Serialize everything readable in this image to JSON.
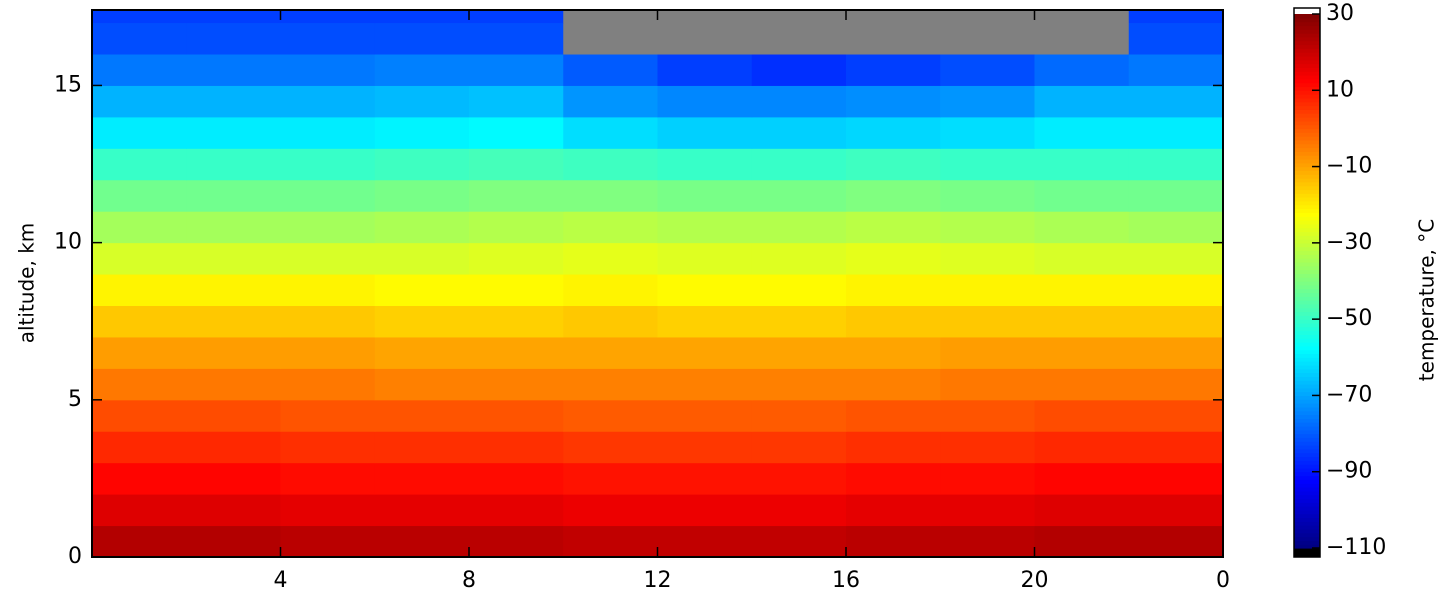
{
  "chart_data": {
    "type": "heatmap",
    "x_bins": [
      0,
      2,
      4,
      6,
      8,
      10,
      12,
      14,
      16,
      18,
      20,
      22,
      24
    ],
    "y_bins": [
      0,
      1,
      2,
      3,
      4,
      5,
      6,
      7,
      8,
      9,
      10,
      11,
      12,
      13,
      14,
      15,
      16,
      17,
      18
    ],
    "z": [
      [
        23,
        23,
        22,
        22,
        22,
        21,
        21,
        21,
        22,
        22,
        23,
        23
      ],
      [
        17,
        17,
        16,
        16,
        16,
        15,
        15,
        15,
        16,
        16,
        17,
        17
      ],
      [
        12,
        12,
        11,
        11,
        11,
        10,
        10,
        10,
        11,
        11,
        12,
        12
      ],
      [
        7,
        7,
        6,
        6,
        6,
        5,
        5,
        5,
        6,
        6,
        7,
        7
      ],
      [
        2,
        2,
        1,
        1,
        1,
        0,
        0,
        0,
        1,
        1,
        2,
        2
      ],
      [
        -4,
        -4,
        -4,
        -5,
        -5,
        -5,
        -5,
        -5,
        -5,
        -4,
        -4,
        -4
      ],
      [
        -9,
        -9,
        -9,
        -10,
        -10,
        -10,
        -10,
        -10,
        -10,
        -9,
        -9,
        -9
      ],
      [
        -15,
        -15,
        -15,
        -16,
        -16,
        -15,
        -16,
        -16,
        -15,
        -15,
        -15,
        -15
      ],
      [
        -21,
        -21,
        -21,
        -22,
        -22,
        -21,
        -22,
        -22,
        -21,
        -21,
        -21,
        -21
      ],
      [
        -28,
        -28,
        -28,
        -28,
        -27,
        -26,
        -27,
        -27,
        -26,
        -27,
        -28,
        -28
      ],
      [
        -35,
        -35,
        -35,
        -34,
        -33,
        -32,
        -33,
        -33,
        -32,
        -33,
        -34,
        -35
      ],
      [
        -42,
        -42,
        -42,
        -41,
        -40,
        -40,
        -41,
        -41,
        -40,
        -41,
        -42,
        -42
      ],
      [
        -50,
        -50,
        -50,
        -49,
        -48,
        -49,
        -50,
        -50,
        -49,
        -50,
        -50,
        -50
      ],
      [
        -60,
        -60,
        -60,
        -59,
        -58,
        -62,
        -64,
        -64,
        -63,
        -62,
        -60,
        -60
      ],
      [
        -68,
        -68,
        -68,
        -67,
        -66,
        -72,
        -74,
        -74,
        -73,
        -72,
        -68,
        -68
      ],
      [
        -76,
        -76,
        -76,
        -75,
        -75,
        -80,
        -84,
        -86,
        -84,
        -82,
        -78,
        -76
      ],
      [
        -82,
        -82,
        -82,
        -82,
        -82,
        null,
        null,
        null,
        null,
        null,
        null,
        -82
      ],
      [
        -84,
        -84,
        -84,
        -84,
        -84,
        null,
        null,
        null,
        null,
        null,
        null,
        -84
      ]
    ],
    "null_color": "#808080",
    "colormap": "jet",
    "xlim": [
      0,
      24
    ],
    "xticks": [
      4,
      8,
      12,
      16,
      20,
      {
        "value": 24,
        "label": "0"
      }
    ],
    "ylim": [
      0,
      17.4
    ],
    "yticks": [
      0,
      5,
      10,
      15
    ],
    "ylabel": "altitude, km",
    "clim": [
      -110,
      30
    ],
    "cticks": [
      {
        "value": -110,
        "label": "−110"
      },
      {
        "value": -90,
        "label": "−90"
      },
      {
        "value": -70,
        "label": "−70"
      },
      {
        "value": -50,
        "label": "−50"
      },
      {
        "value": -30,
        "label": "−30"
      },
      {
        "value": -10,
        "label": "−10"
      },
      10,
      30
    ],
    "clabel": "temperature, °C"
  }
}
